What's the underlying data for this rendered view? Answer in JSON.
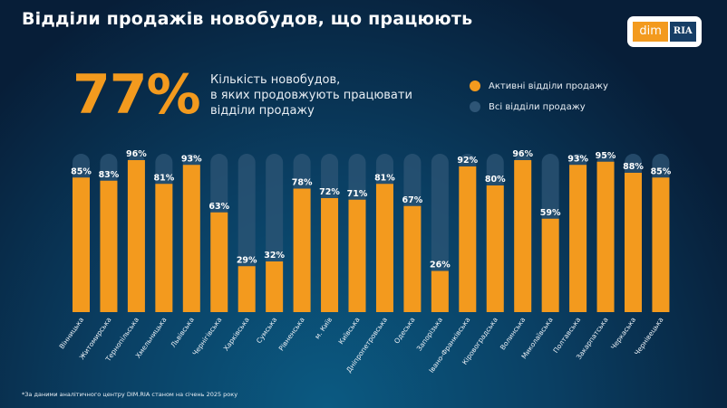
{
  "header": {
    "title": "Відділи продажів новобудов, що працюють"
  },
  "logo": {
    "left": "dim",
    "right": "RIA"
  },
  "headline": {
    "value": "77%",
    "description_lines": [
      "Кількість новобудов,",
      "в яких продовжують працювати",
      "відділи продажу"
    ]
  },
  "footnote": "*За даними аналітичного центру DIM.RIA станом на січень 2025 року",
  "colors": {
    "active": "#f39a1e",
    "all": "#2e5576"
  },
  "chart_data": {
    "type": "bar",
    "title": "",
    "ylim": [
      0,
      100
    ],
    "grid": false,
    "legend_placement": "top-right",
    "legend": [
      {
        "label": "Активні відділи продажу",
        "color": "#f39a1e"
      },
      {
        "label": "Всі відділи продажу",
        "color": "#2e5576"
      }
    ],
    "categories": [
      "Вінницька",
      "Житомирська",
      "Тернопільська",
      "Хмельницька",
      "Львівська",
      "Чернігівська",
      "Харківська",
      "Сумська",
      "Рівненська",
      "м. Київ",
      "Київська",
      "Дніпропетровська",
      "Одеська",
      "Запорізька",
      "Івано-Франківська",
      "Кіровоградська",
      "Волинська",
      "Миколаївська",
      "Полтавська",
      "Закарпатська",
      "Черкаська",
      "Чернівецька"
    ],
    "series": [
      {
        "name": "Активні відділи продажу",
        "values": [
          85,
          83,
          96,
          81,
          93,
          63,
          29,
          32,
          78,
          72,
          71,
          81,
          67,
          26,
          92,
          80,
          96,
          59,
          93,
          95,
          88,
          85
        ]
      },
      {
        "name": "Всі відділи продажу",
        "values": [
          100,
          100,
          100,
          100,
          100,
          100,
          100,
          100,
          100,
          100,
          100,
          100,
          100,
          100,
          100,
          100,
          100,
          100,
          100,
          100,
          100,
          100
        ]
      }
    ],
    "data_labels": [
      "85%",
      "83%",
      "96%",
      "81%",
      "93%",
      "63%",
      "29%",
      "32%",
      "78%",
      "72%",
      "71%",
      "81%",
      "67%",
      "26%",
      "92%",
      "80%",
      "96%",
      "59%",
      "93%",
      "95%",
      "88%",
      "85%"
    ]
  }
}
